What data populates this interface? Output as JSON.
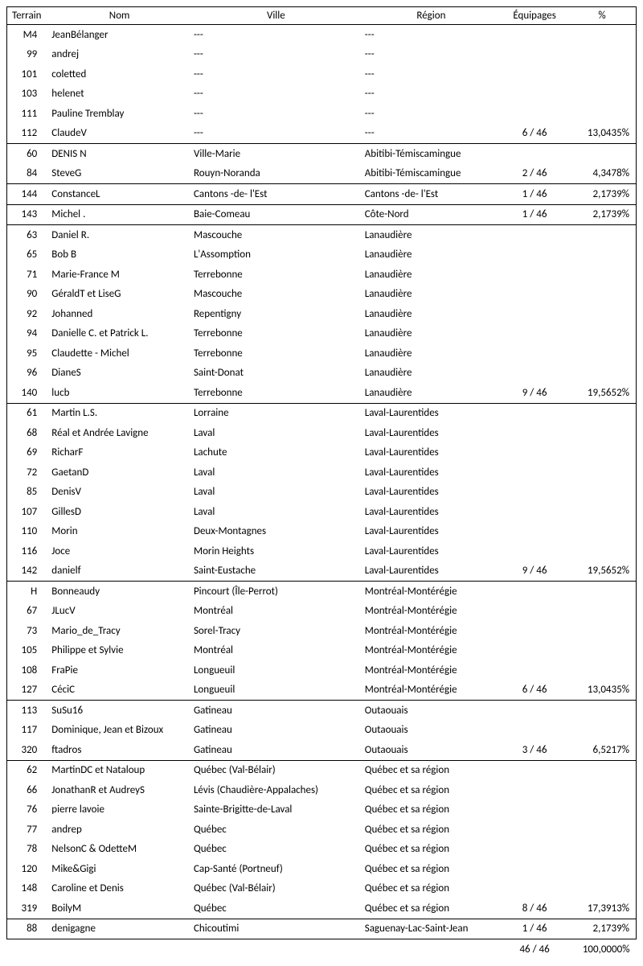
{
  "headers": {
    "terrain": "Terrain",
    "nom": "Nom",
    "ville": "Ville",
    "region": "Région",
    "equipages": "Équipages",
    "pct": "%"
  },
  "rows": [
    {
      "terrain": "M4",
      "nom": "JeanBélanger",
      "ville": "---",
      "region": "---",
      "equip": "",
      "pct": "",
      "groupEnd": false
    },
    {
      "terrain": "99",
      "nom": "andrej",
      "ville": "---",
      "region": "---",
      "equip": "",
      "pct": "",
      "groupEnd": false
    },
    {
      "terrain": "101",
      "nom": "coletted",
      "ville": "---",
      "region": "---",
      "equip": "",
      "pct": "",
      "groupEnd": false
    },
    {
      "terrain": "103",
      "nom": "helenet",
      "ville": "---",
      "region": "---",
      "equip": "",
      "pct": "",
      "groupEnd": false
    },
    {
      "terrain": "111",
      "nom": "Pauline Tremblay",
      "ville": "---",
      "region": "---",
      "equip": "",
      "pct": "",
      "groupEnd": false
    },
    {
      "terrain": "112",
      "nom": "ClaudeV",
      "ville": "---",
      "region": "---",
      "equip": "6  /  46",
      "pct": "13,0435%",
      "groupEnd": true
    },
    {
      "terrain": "60",
      "nom": "DENIS N",
      "ville": "Ville-Marie",
      "region": "Abitibi-Témiscamingue",
      "equip": "",
      "pct": "",
      "groupEnd": false
    },
    {
      "terrain": "84",
      "nom": "SteveG",
      "ville": "Rouyn-Noranda",
      "region": "Abitibi-Témiscamingue",
      "equip": "2  /  46",
      "pct": "4,3478%",
      "groupEnd": true
    },
    {
      "terrain": "144",
      "nom": "ConstanceL",
      "ville": "Cantons -de- l'Est",
      "region": "Cantons -de- l'Est",
      "equip": "1  /  46",
      "pct": "2,1739%",
      "groupEnd": true
    },
    {
      "terrain": "143",
      "nom": "Michel .",
      "ville": "Baie-Comeau",
      "region": "Côte-Nord",
      "equip": "1  /  46",
      "pct": "2,1739%",
      "groupEnd": true
    },
    {
      "terrain": "63",
      "nom": "Daniel R.",
      "ville": "Mascouche",
      "region": "Lanaudière",
      "equip": "",
      "pct": "",
      "groupEnd": false
    },
    {
      "terrain": "65",
      "nom": "Bob B",
      "ville": "L'Assomption",
      "region": "Lanaudière",
      "equip": "",
      "pct": "",
      "groupEnd": false
    },
    {
      "terrain": "71",
      "nom": "Marie-France M",
      "ville": "Terrebonne",
      "region": "Lanaudière",
      "equip": "",
      "pct": "",
      "groupEnd": false
    },
    {
      "terrain": "90",
      "nom": "GéraldT et LiseG",
      "ville": "Mascouche",
      "region": "Lanaudière",
      "equip": "",
      "pct": "",
      "groupEnd": false
    },
    {
      "terrain": "92",
      "nom": "Johanned",
      "ville": "Repentigny",
      "region": "Lanaudière",
      "equip": "",
      "pct": "",
      "groupEnd": false
    },
    {
      "terrain": "94",
      "nom": "Danielle C. et Patrick L.",
      "ville": "Terrebonne",
      "region": "Lanaudière",
      "equip": "",
      "pct": "",
      "groupEnd": false
    },
    {
      "terrain": "95",
      "nom": "Claudette - Michel",
      "ville": "Terrebonne",
      "region": "Lanaudière",
      "equip": "",
      "pct": "",
      "groupEnd": false
    },
    {
      "terrain": "96",
      "nom": "DianeS",
      "ville": "Saint-Donat",
      "region": "Lanaudière",
      "equip": "",
      "pct": "",
      "groupEnd": false
    },
    {
      "terrain": "140",
      "nom": "lucb",
      "ville": "Terrebonne",
      "region": "Lanaudière",
      "equip": "9  /  46",
      "pct": "19,5652%",
      "groupEnd": true
    },
    {
      "terrain": "61",
      "nom": "Martin L.S.",
      "ville": "Lorraine",
      "region": "Laval-Laurentides",
      "equip": "",
      "pct": "",
      "groupEnd": false
    },
    {
      "terrain": "68",
      "nom": "Réal et Andrée Lavigne",
      "ville": "Laval",
      "region": "Laval-Laurentides",
      "equip": "",
      "pct": "",
      "groupEnd": false
    },
    {
      "terrain": "69",
      "nom": "RicharF",
      "ville": "Lachute",
      "region": "Laval-Laurentides",
      "equip": "",
      "pct": "",
      "groupEnd": false
    },
    {
      "terrain": "72",
      "nom": "GaetanD",
      "ville": "Laval",
      "region": "Laval-Laurentides",
      "equip": "",
      "pct": "",
      "groupEnd": false
    },
    {
      "terrain": "85",
      "nom": "DenisV",
      "ville": "Laval",
      "region": "Laval-Laurentides",
      "equip": "",
      "pct": "",
      "groupEnd": false
    },
    {
      "terrain": "107",
      "nom": "GillesD",
      "ville": "Laval",
      "region": "Laval-Laurentides",
      "equip": "",
      "pct": "",
      "groupEnd": false
    },
    {
      "terrain": "110",
      "nom": "Morin",
      "ville": "Deux-Montagnes",
      "region": "Laval-Laurentides",
      "equip": "",
      "pct": "",
      "groupEnd": false
    },
    {
      "terrain": "116",
      "nom": "Joce",
      "ville": "Morin Heights",
      "region": "Laval-Laurentides",
      "equip": "",
      "pct": "",
      "groupEnd": false
    },
    {
      "terrain": "142",
      "nom": "danielf",
      "ville": "Saint-Eustache",
      "region": "Laval-Laurentides",
      "equip": "9  /  46",
      "pct": "19,5652%",
      "groupEnd": true
    },
    {
      "terrain": "H",
      "nom": "Bonneaudy",
      "ville": "Pincourt (Île-Perrot)",
      "region": "Montréal-Montérégie",
      "equip": "",
      "pct": "",
      "groupEnd": false
    },
    {
      "terrain": "67",
      "nom": "JLucV",
      "ville": "Montréal",
      "region": "Montréal-Montérégie",
      "equip": "",
      "pct": "",
      "groupEnd": false
    },
    {
      "terrain": "73",
      "nom": "Mario_de_Tracy",
      "ville": "Sorel-Tracy",
      "region": "Montréal-Montérégie",
      "equip": "",
      "pct": "",
      "groupEnd": false
    },
    {
      "terrain": "105",
      "nom": "Philippe et Sylvie",
      "ville": "Montréal",
      "region": "Montréal-Montérégie",
      "equip": "",
      "pct": "",
      "groupEnd": false
    },
    {
      "terrain": "108",
      "nom": "FraPie",
      "ville": "Longueuil",
      "region": "Montréal-Montérégie",
      "equip": "",
      "pct": "",
      "groupEnd": false
    },
    {
      "terrain": "127",
      "nom": "CéciC",
      "ville": "Longueuil",
      "region": "Montréal-Montérégie",
      "equip": "6  /  46",
      "pct": "13,0435%",
      "groupEnd": true
    },
    {
      "terrain": "113",
      "nom": "SuSu16",
      "ville": "Gatineau",
      "region": "Outaouais",
      "equip": "",
      "pct": "",
      "groupEnd": false
    },
    {
      "terrain": "117",
      "nom": "Dominique, Jean et Bizoux",
      "ville": "Gatineau",
      "region": "Outaouais",
      "equip": "",
      "pct": "",
      "groupEnd": false
    },
    {
      "terrain": "320",
      "nom": "ftadros",
      "ville": "Gatineau",
      "region": "Outaouais",
      "equip": "3  /  46",
      "pct": "6,5217%",
      "groupEnd": true
    },
    {
      "terrain": "62",
      "nom": "MartinDC et Nataloup",
      "ville": "Québec (Val-Bélair)",
      "region": "Québec et sa région",
      "equip": "",
      "pct": "",
      "groupEnd": false
    },
    {
      "terrain": "66",
      "nom": "JonathanR et AudreyS",
      "ville": "Lévis (Chaudière-Appalaches)",
      "region": "Québec et sa région",
      "equip": "",
      "pct": "",
      "groupEnd": false
    },
    {
      "terrain": "76",
      "nom": "pierre lavoie",
      "ville": "Sainte-Brigitte-de-Laval",
      "region": "Québec et sa région",
      "equip": "",
      "pct": "",
      "groupEnd": false
    },
    {
      "terrain": "77",
      "nom": "andrep",
      "ville": "Québec",
      "region": "Québec et sa région",
      "equip": "",
      "pct": "",
      "groupEnd": false
    },
    {
      "terrain": "78",
      "nom": "NelsonC & OdetteM",
      "ville": "Québec",
      "region": "Québec et sa région",
      "equip": "",
      "pct": "",
      "groupEnd": false
    },
    {
      "terrain": "120",
      "nom": "Mike&Gigi",
      "ville": "Cap-Santé (Portneuf)",
      "region": "Québec et sa région",
      "equip": "",
      "pct": "",
      "groupEnd": false
    },
    {
      "terrain": "148",
      "nom": "Caroline et Denis",
      "ville": "Québec (Val-Bélair)",
      "region": "Québec et sa région",
      "equip": "",
      "pct": "",
      "groupEnd": false
    },
    {
      "terrain": "319",
      "nom": "BoilyM",
      "ville": "Québec",
      "region": "Québec et sa région",
      "equip": "8  /  46",
      "pct": "17,3913%",
      "groupEnd": true
    },
    {
      "terrain": "88",
      "nom": "denigagne",
      "ville": "Chicoutimi",
      "region": "Saguenay-Lac-Saint-Jean",
      "equip": "1  /  46",
      "pct": "2,1739%",
      "groupEnd": true
    }
  ],
  "total": {
    "equip": "46  /  46",
    "pct": "100,0000%"
  }
}
